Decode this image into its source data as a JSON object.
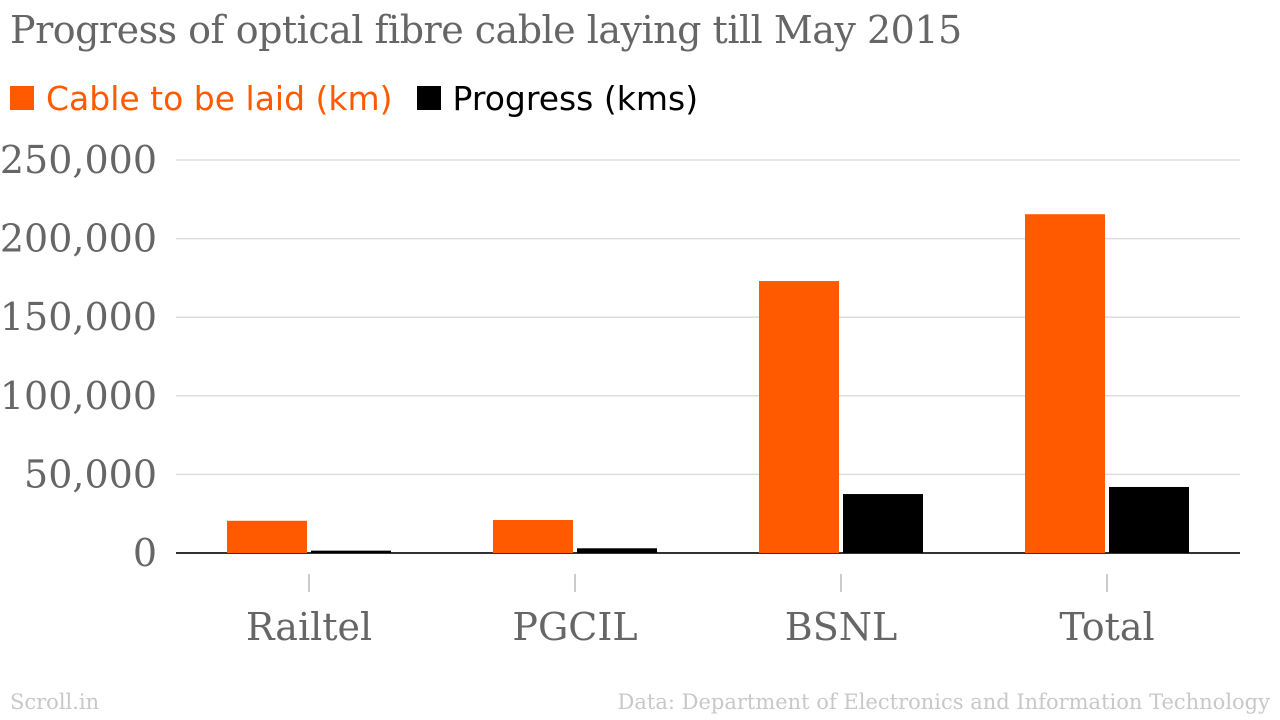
{
  "chart_data": {
    "type": "bar",
    "title": "Progress of optical fibre cable laying till May  2015",
    "categories": [
      "Railtel",
      "PGCIL",
      "BSNL",
      "Total"
    ],
    "series": [
      {
        "name": "Cable to be laid (km)",
        "color": "#ff5a00",
        "values": [
          20500,
          21000,
          173000,
          215500
        ]
      },
      {
        "name": "Progress (kms)",
        "color": "#000000",
        "values": [
          1500,
          3000,
          37500,
          42000
        ]
      }
    ],
    "y_ticks": [
      "0",
      "50,000",
      "100,000",
      "150,000",
      "200,000",
      "250,000"
    ],
    "ylim": [
      0,
      250000
    ],
    "xlabel": "",
    "ylabel": "",
    "grid": true,
    "legend_position": "top-left"
  },
  "footer": {
    "source_left": "Scroll.in",
    "source_right": "Data: Department of Electronics and Information Technology"
  }
}
